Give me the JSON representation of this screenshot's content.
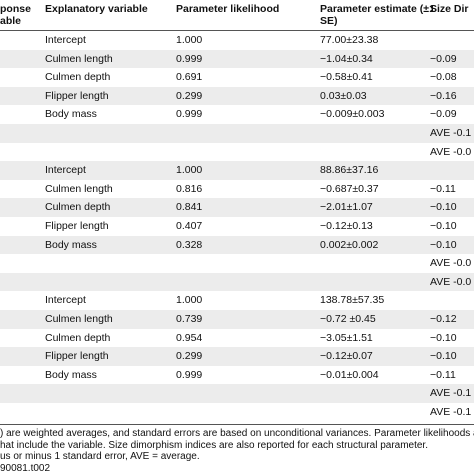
{
  "table": {
    "header": [
      "ponse\nable",
      "Explanatory variable",
      "Parameter likelihood",
      "Parameter estimate (±1\nSE)",
      "Size Dir"
    ],
    "rows": [
      [
        "Intercept",
        "1.000",
        "77.00±23.38",
        ""
      ],
      [
        "Culmen length",
        "0.999",
        "−1.04±0.34",
        "−0.09"
      ],
      [
        "Culmen depth",
        "0.691",
        "−0.58±0.41",
        "−0.08"
      ],
      [
        "Flipper length",
        "0.299",
        "0.03±0.03",
        "−0.16"
      ],
      [
        "Body mass",
        "0.999",
        "−0.009±0.003",
        "−0.09"
      ],
      [
        "",
        "",
        "",
        "AVE -0.1"
      ],
      [
        "",
        "",
        "",
        "AVE -0.0"
      ],
      [
        "Intercept",
        "1.000",
        "88.86±37.16",
        ""
      ],
      [
        "Culmen length",
        "0.816",
        "−0.687±0.37",
        "−0.11"
      ],
      [
        "Culmen depth",
        "0.841",
        "−2.01±1.07",
        "−0.10"
      ],
      [
        "Flipper length",
        "0.407",
        "−0.12±0.13",
        "−0.10"
      ],
      [
        "Body mass",
        "0.328",
        "0.002±0.002",
        "−0.10"
      ],
      [
        "",
        "",
        "",
        "AVE -0.0"
      ],
      [
        "",
        "",
        "",
        "AVE -0.0"
      ],
      [
        "Intercept",
        "1.000",
        "138.78±57.35",
        ""
      ],
      [
        "Culmen length",
        "0.739",
        "−0.72 ±0.45",
        "−0.12"
      ],
      [
        "Culmen depth",
        "0.954",
        "−3.05±1.51",
        "−0.10"
      ],
      [
        "Flipper length",
        "0.299",
        "−0.12±0.07",
        "−0.10"
      ],
      [
        "Body mass",
        "0.999",
        "−0.01±0.004",
        "−0.11"
      ],
      [
        "",
        "",
        "",
        "AVE -0.1"
      ],
      [
        "",
        "",
        "",
        "AVE -0.1"
      ]
    ],
    "notes": [
      ") are weighted averages, and standard errors are based on unconditional variances. Parameter likelihoods a",
      "hat include the variable. Size dimorphism indices are also reported for each structural parameter.",
      "us or minus 1 standard error, AVE = average.",
      "90081.t002"
    ]
  }
}
